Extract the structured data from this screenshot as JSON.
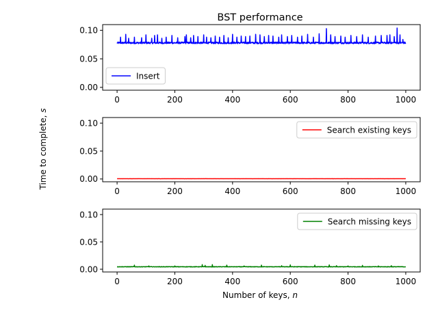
{
  "chart_data": {
    "type": "line",
    "title": "BST performance",
    "xlabel": "Number of keys, n",
    "ylabel": "Time to complete, s",
    "x_range": [
      0,
      1000
    ],
    "xlim": [
      -50,
      1050
    ],
    "ylim": [
      -0.005,
      0.11
    ],
    "x_ticks": [
      0,
      200,
      400,
      600,
      800,
      1000
    ],
    "y_ticks": [
      0.0,
      0.05,
      0.1
    ],
    "y_tick_labels": [
      "0.00",
      "0.05",
      "0.10"
    ],
    "x_tick_labels": [
      "0",
      "200",
      "400",
      "600",
      "800",
      "1000"
    ],
    "grid": false,
    "panels": [
      {
        "name": "Insert",
        "color": "#0000ff",
        "legend_position": "lower-left",
        "baseline": 0.078,
        "noise": 0.0015,
        "spikes": [
          [
            12,
            0.088
          ],
          [
            30,
            0.093
          ],
          [
            40,
            0.086
          ],
          [
            60,
            0.088
          ],
          [
            85,
            0.087
          ],
          [
            100,
            0.092
          ],
          [
            120,
            0.086
          ],
          [
            130,
            0.091
          ],
          [
            140,
            0.092
          ],
          [
            155,
            0.086
          ],
          [
            170,
            0.088
          ],
          [
            190,
            0.091
          ],
          [
            210,
            0.087
          ],
          [
            235,
            0.089
          ],
          [
            240,
            0.092
          ],
          [
            255,
            0.087
          ],
          [
            265,
            0.091
          ],
          [
            280,
            0.089
          ],
          [
            300,
            0.092
          ],
          [
            310,
            0.088
          ],
          [
            325,
            0.087
          ],
          [
            340,
            0.09
          ],
          [
            355,
            0.088
          ],
          [
            370,
            0.091
          ],
          [
            385,
            0.087
          ],
          [
            400,
            0.093
          ],
          [
            415,
            0.088
          ],
          [
            430,
            0.09
          ],
          [
            445,
            0.089
          ],
          [
            460,
            0.09
          ],
          [
            480,
            0.093
          ],
          [
            495,
            0.092
          ],
          [
            510,
            0.089
          ],
          [
            525,
            0.091
          ],
          [
            540,
            0.09
          ],
          [
            560,
            0.088
          ],
          [
            570,
            0.092
          ],
          [
            590,
            0.089
          ],
          [
            605,
            0.091
          ],
          [
            625,
            0.088
          ],
          [
            640,
            0.09
          ],
          [
            660,
            0.093
          ],
          [
            680,
            0.088
          ],
          [
            700,
            0.094
          ],
          [
            725,
            0.103
          ],
          [
            740,
            0.092
          ],
          [
            755,
            0.089
          ],
          [
            775,
            0.09
          ],
          [
            790,
            0.088
          ],
          [
            810,
            0.091
          ],
          [
            830,
            0.089
          ],
          [
            850,
            0.092
          ],
          [
            870,
            0.088
          ],
          [
            895,
            0.09
          ],
          [
            915,
            0.091
          ],
          [
            935,
            0.091
          ],
          [
            945,
            0.092
          ],
          [
            960,
            0.089
          ],
          [
            970,
            0.104
          ],
          [
            980,
            0.092
          ],
          [
            990,
            0.084
          ]
        ]
      },
      {
        "name": "Search existing keys",
        "color": "#ff0000",
        "legend_position": "upper-right",
        "baseline": 0.0005,
        "noise": 0.0001,
        "spikes": []
      },
      {
        "name": "Search missing keys",
        "color": "#008000",
        "legend_position": "upper-right",
        "baseline": 0.0045,
        "noise": 0.0004,
        "spikes": [
          [
            60,
            0.0075
          ],
          [
            110,
            0.006
          ],
          [
            200,
            0.006
          ],
          [
            295,
            0.0085
          ],
          [
            305,
            0.007
          ],
          [
            330,
            0.0085
          ],
          [
            380,
            0.0075
          ],
          [
            440,
            0.006
          ],
          [
            500,
            0.0075
          ],
          [
            570,
            0.0065
          ],
          [
            600,
            0.008
          ],
          [
            685,
            0.0075
          ],
          [
            735,
            0.008
          ],
          [
            760,
            0.0065
          ],
          [
            800,
            0.006
          ],
          [
            850,
            0.007
          ],
          [
            905,
            0.006
          ],
          [
            950,
            0.0065
          ]
        ]
      }
    ]
  }
}
